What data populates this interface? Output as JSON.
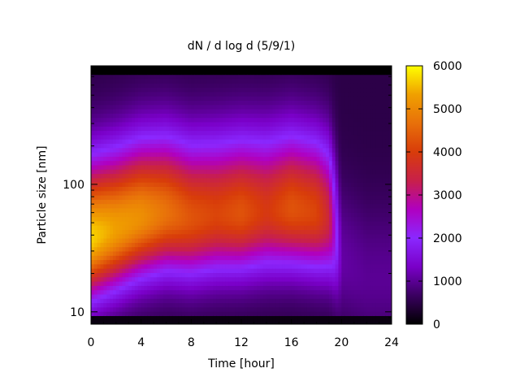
{
  "chart_data": {
    "type": "heatmap",
    "title": "dN / d log d (5/9/1)",
    "xlabel": "Time [hour]",
    "ylabel": "Particle size [nm]",
    "x_range": [
      0,
      24
    ],
    "y_range_nm": [
      8,
      850
    ],
    "y_scale": "log",
    "x_ticks": [
      "0",
      "4",
      "8",
      "12",
      "16",
      "20",
      "24"
    ],
    "y_ticks": [
      "10",
      "100"
    ],
    "colorbar": {
      "range": [
        0,
        6000
      ],
      "ticks": [
        "0",
        "1000",
        "2000",
        "3000",
        "4000",
        "5000",
        "6000"
      ],
      "palette": [
        "#000000",
        "#3a0060",
        "#7a00c8",
        "#8a28ff",
        "#b000c0",
        "#c8204a",
        "#d83c0a",
        "#e8700a",
        "#f0a000",
        "#ffff00"
      ]
    },
    "grid": false,
    "mode_diameter_nm_by_hour": {
      "hours": [
        0,
        2,
        4,
        6,
        8,
        10,
        12,
        14,
        16,
        18,
        19,
        20,
        22,
        24
      ],
      "peak_nm": [
        38,
        45,
        55,
        60,
        55,
        58,
        60,
        62,
        65,
        60,
        55,
        25,
        18,
        18
      ],
      "peak_value": [
        5200,
        4800,
        4600,
        4200,
        3800,
        3600,
        3800,
        3400,
        3800,
        3600,
        3000,
        600,
        500,
        500
      ]
    }
  }
}
